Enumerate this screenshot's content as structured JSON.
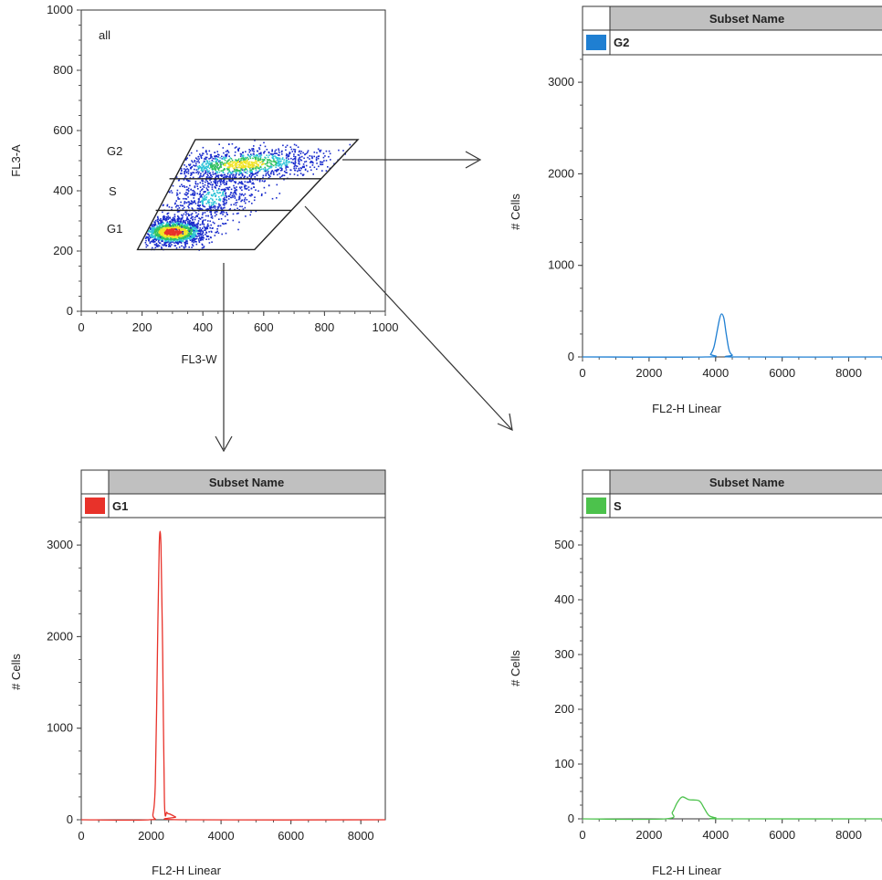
{
  "chart_data": [
    {
      "id": "scatter",
      "type": "scatter",
      "xlabel": "FL3-W",
      "ylabel": "FL3-A",
      "xlim": [
        0,
        1000
      ],
      "ylim": [
        0,
        1000
      ],
      "xticks": [
        "0",
        "200",
        "400",
        "600",
        "800",
        "1000"
      ],
      "yticks": [
        "0",
        "200",
        "400",
        "600",
        "800",
        "1000"
      ],
      "annotations": {
        "all": "all",
        "G2": "G2",
        "S": "S",
        "G1": "G1"
      },
      "gate_polygon": [
        [
          185,
          205
        ],
        [
          570,
          205
        ],
        [
          910,
          570
        ],
        [
          375,
          570
        ]
      ],
      "gate_dividers": [
        {
          "y": 335,
          "x": [
            245,
            690
          ]
        },
        {
          "y": 440,
          "x": [
            290,
            790
          ]
        }
      ],
      "populations": [
        {
          "name": "G1",
          "cx": 300,
          "cy": 265,
          "sx": 55,
          "sy": 22,
          "n": 1500
        },
        {
          "name": "S",
          "cx": 430,
          "cy": 380,
          "sx": 75,
          "sy": 45,
          "n": 700
        },
        {
          "name": "G2",
          "cx": 530,
          "cy": 490,
          "sx": 130,
          "sy": 28,
          "n": 1100
        }
      ],
      "density_colors": [
        "#1a2ccc",
        "#2ec4d8",
        "#31c35f",
        "#f2e425",
        "#e8322a"
      ]
    },
    {
      "id": "hist-g2",
      "type": "line",
      "xlabel": "FL2-H Linear",
      "ylabel": "# Cells",
      "xlim": [
        0,
        9000
      ],
      "ylim": [
        0,
        3300
      ],
      "xticks": [
        "0",
        "2000",
        "4000",
        "6000",
        "8000"
      ],
      "yticks": [
        "0",
        "1000",
        "2000",
        "3000"
      ],
      "legend_header": "Subset Name",
      "series": [
        {
          "name": "G2",
          "color": "#1f7fd2",
          "x": [
            0,
            3700,
            3850,
            3950,
            4050,
            4120,
            4180,
            4250,
            4320,
            4400,
            4500,
            4650,
            9000
          ],
          "y": [
            0,
            0,
            30,
            110,
            290,
            420,
            470,
            420,
            250,
            80,
            20,
            0,
            0
          ]
        }
      ]
    },
    {
      "id": "hist-g1",
      "type": "line",
      "xlabel": "FL2-H Linear",
      "ylabel": "# Cells",
      "xlim": [
        0,
        8700
      ],
      "ylim": [
        0,
        3300
      ],
      "xticks": [
        "0",
        "2000",
        "4000",
        "6000",
        "8000"
      ],
      "yticks": [
        "0",
        "1000",
        "2000",
        "3000"
      ],
      "legend_header": "Subset Name",
      "series": [
        {
          "name": "G1",
          "color": "#e8322a",
          "x": [
            0,
            1950,
            2050,
            2120,
            2180,
            2230,
            2280,
            2330,
            2380,
            2450,
            2550,
            2700,
            2850,
            8700
          ],
          "y": [
            0,
            0,
            60,
            400,
            1800,
            3000,
            3000,
            1800,
            200,
            80,
            60,
            30,
            0,
            0
          ]
        }
      ]
    },
    {
      "id": "hist-s",
      "type": "line",
      "xlabel": "FL2-H Linear",
      "ylabel": "# Cells",
      "xlim": [
        0,
        9000
      ],
      "ylim": [
        0,
        550
      ],
      "xticks": [
        "0",
        "2000",
        "4000",
        "6000",
        "8000"
      ],
      "yticks": [
        "0",
        "100",
        "200",
        "300",
        "400",
        "500"
      ],
      "legend_header": "Subset Name",
      "series": [
        {
          "name": "S",
          "color": "#4cc24c",
          "x": [
            0,
            2500,
            2700,
            2850,
            3000,
            3200,
            3500,
            3650,
            3800,
            4000,
            4250,
            9000
          ],
          "y": [
            0,
            0,
            12,
            30,
            40,
            35,
            33,
            20,
            6,
            2,
            0,
            0
          ]
        }
      ]
    }
  ]
}
